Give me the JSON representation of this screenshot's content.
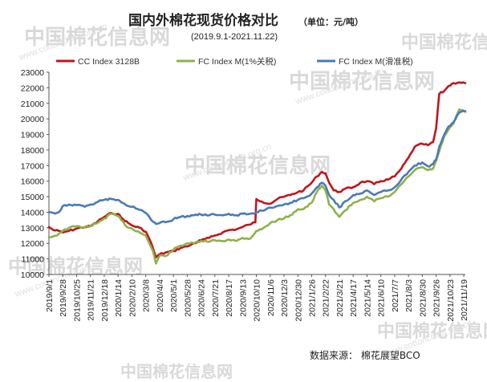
{
  "header": {
    "title": "国内外棉花现货价格对比",
    "unit": "（单位：元/吨）",
    "date_range": "(2019.9.1-2021.11.22)"
  },
  "source": "数据来源：  棉花展望BCO",
  "watermark": {
    "brand": "中国棉花信息网",
    "url": "www.cottonchina.org.cn"
  },
  "colors": {
    "cc_index": "#c0151c",
    "fc_index_1pct": "#8db24a",
    "fc_index_sliding": "#4a7ab8",
    "axis": "#555555",
    "watermark": "#d9d9d9"
  },
  "chart_data": {
    "type": "line",
    "title": "国内外棉花现货价格对比",
    "subtitle": "(2019.9.1-2021.11.22)",
    "xlabel": "",
    "ylabel": "",
    "ylim": [
      10000,
      23000
    ],
    "yticks": [
      10000,
      11000,
      12000,
      13000,
      14000,
      15000,
      16000,
      17000,
      18000,
      19000,
      20000,
      21000,
      22000,
      23000
    ],
    "xlim": [
      "2019-09-01",
      "2021-11-22"
    ],
    "x_tick_labels": [
      "2019/9/1",
      "2019/9/28",
      "2019/10/25",
      "2019/11/21",
      "2019/12/18",
      "2020/1/14",
      "2020/2/10",
      "2020/3/8",
      "2020/4/4",
      "2020/5/1",
      "2020/5/28",
      "2020/6/24",
      "2020/7/21",
      "2020/8/17",
      "2020/9/13",
      "2020/10/10",
      "2020/11/6",
      "2020/12/3",
      "2020/12/30",
      "2021/1/26",
      "2021/2/22",
      "2021/3/21",
      "2021/4/17",
      "2021/5/14",
      "2021/6/10",
      "2021/7/7",
      "2021/8/3",
      "2021/8/30",
      "2021/9/26",
      "2021/10/23",
      "2021/11/19"
    ],
    "grid": false,
    "legend_position": "top",
    "series": [
      {
        "name": "CC Index 3128B",
        "color": "#c0151c",
        "points": [
          [
            "2019-09-01",
            13050
          ],
          [
            "2019-09-10",
            12850
          ],
          [
            "2019-09-20",
            12800
          ],
          [
            "2019-09-28",
            12700
          ],
          [
            "2019-10-10",
            12800
          ],
          [
            "2019-10-25",
            12950
          ],
          [
            "2019-11-10",
            13050
          ],
          [
            "2019-11-21",
            13100
          ],
          [
            "2019-12-05",
            13400
          ],
          [
            "2019-12-18",
            13700
          ],
          [
            "2020-01-01",
            13950
          ],
          [
            "2020-01-14",
            13900
          ],
          [
            "2020-01-20",
            13650
          ],
          [
            "2020-02-03",
            13300
          ],
          [
            "2020-02-10",
            13150
          ],
          [
            "2020-02-25",
            13000
          ],
          [
            "2020-03-01",
            12900
          ],
          [
            "2020-03-08",
            12750
          ],
          [
            "2020-03-15",
            12300
          ],
          [
            "2020-03-22",
            11700
          ],
          [
            "2020-03-28",
            11100
          ],
          [
            "2020-04-04",
            11300
          ],
          [
            "2020-04-15",
            11400
          ],
          [
            "2020-05-01",
            11500
          ],
          [
            "2020-05-15",
            11700
          ],
          [
            "2020-05-28",
            11800
          ],
          [
            "2020-06-10",
            12000
          ],
          [
            "2020-06-24",
            12200
          ],
          [
            "2020-07-10",
            12350
          ],
          [
            "2020-07-21",
            12500
          ],
          [
            "2020-08-05",
            12700
          ],
          [
            "2020-08-17",
            12850
          ],
          [
            "2020-09-01",
            12900
          ],
          [
            "2020-09-13",
            13050
          ],
          [
            "2020-09-25",
            13200
          ],
          [
            "2020-10-08",
            13350
          ],
          [
            "2020-10-10",
            14850
          ],
          [
            "2020-10-20",
            14700
          ],
          [
            "2020-11-06",
            14550
          ],
          [
            "2020-11-20",
            14850
          ],
          [
            "2020-12-03",
            15000
          ],
          [
            "2020-12-15",
            15100
          ],
          [
            "2020-12-30",
            15300
          ],
          [
            "2021-01-10",
            15400
          ],
          [
            "2021-01-26",
            15900
          ],
          [
            "2021-02-05",
            16300
          ],
          [
            "2021-02-15",
            16600
          ],
          [
            "2021-02-22",
            16500
          ],
          [
            "2021-03-01",
            15900
          ],
          [
            "2021-03-10",
            15400
          ],
          [
            "2021-03-21",
            15300
          ],
          [
            "2021-04-01",
            15500
          ],
          [
            "2021-04-17",
            15600
          ],
          [
            "2021-05-01",
            15900
          ],
          [
            "2021-05-14",
            16000
          ],
          [
            "2021-05-28",
            15800
          ],
          [
            "2021-06-10",
            16000
          ],
          [
            "2021-06-24",
            16100
          ],
          [
            "2021-07-07",
            16300
          ],
          [
            "2021-07-20",
            16800
          ],
          [
            "2021-08-03",
            17500
          ],
          [
            "2021-08-15",
            18200
          ],
          [
            "2021-08-30",
            18400
          ],
          [
            "2021-09-10",
            18300
          ],
          [
            "2021-09-20",
            18500
          ],
          [
            "2021-09-26",
            19400
          ],
          [
            "2021-10-02",
            21600
          ],
          [
            "2021-10-12",
            21800
          ],
          [
            "2021-10-20",
            22100
          ],
          [
            "2021-10-30",
            22300
          ],
          [
            "2021-11-10",
            22350
          ],
          [
            "2021-11-22",
            22300
          ]
        ]
      },
      {
        "name": "FC Index M(1%关税)",
        "color": "#8db24a",
        "points": [
          [
            "2019-09-01",
            12400
          ],
          [
            "2019-09-10",
            12450
          ],
          [
            "2019-09-20",
            12600
          ],
          [
            "2019-09-28",
            12800
          ],
          [
            "2019-10-10",
            13000
          ],
          [
            "2019-10-25",
            13100
          ],
          [
            "2019-11-10",
            13050
          ],
          [
            "2019-11-21",
            13100
          ],
          [
            "2019-12-05",
            13300
          ],
          [
            "2019-12-18",
            13600
          ],
          [
            "2020-01-01",
            13900
          ],
          [
            "2020-01-14",
            13750
          ],
          [
            "2020-01-20",
            13500
          ],
          [
            "2020-02-03",
            13000
          ],
          [
            "2020-02-10",
            12950
          ],
          [
            "2020-02-25",
            12700
          ],
          [
            "2020-03-08",
            12500
          ],
          [
            "2020-03-15",
            12000
          ],
          [
            "2020-03-22",
            11500
          ],
          [
            "2020-03-28",
            10700
          ],
          [
            "2020-04-04",
            11200
          ],
          [
            "2020-04-20",
            11250
          ],
          [
            "2020-05-01",
            11600
          ],
          [
            "2020-05-15",
            11850
          ],
          [
            "2020-05-28",
            12000
          ],
          [
            "2020-06-10",
            12000
          ],
          [
            "2020-06-24",
            12150
          ],
          [
            "2020-07-10",
            12100
          ],
          [
            "2020-07-21",
            12200
          ],
          [
            "2020-08-05",
            12150
          ],
          [
            "2020-08-17",
            12250
          ],
          [
            "2020-09-01",
            12150
          ],
          [
            "2020-09-13",
            12350
          ],
          [
            "2020-09-28",
            12300
          ],
          [
            "2020-10-10",
            12800
          ],
          [
            "2020-10-20",
            12900
          ],
          [
            "2020-11-06",
            13300
          ],
          [
            "2020-11-20",
            13500
          ],
          [
            "2020-12-03",
            13600
          ],
          [
            "2020-12-15",
            13800
          ],
          [
            "2020-12-30",
            14200
          ],
          [
            "2021-01-10",
            14200
          ],
          [
            "2021-01-26",
            14600
          ],
          [
            "2021-02-05",
            15300
          ],
          [
            "2021-02-15",
            15700
          ],
          [
            "2021-02-22",
            15400
          ],
          [
            "2021-03-01",
            14500
          ],
          [
            "2021-03-10",
            14200
          ],
          [
            "2021-03-21",
            13700
          ],
          [
            "2021-04-01",
            14100
          ],
          [
            "2021-04-17",
            14600
          ],
          [
            "2021-05-01",
            14800
          ],
          [
            "2021-05-14",
            15000
          ],
          [
            "2021-05-28",
            14700
          ],
          [
            "2021-06-10",
            14900
          ],
          [
            "2021-06-24",
            15000
          ],
          [
            "2021-07-07",
            15300
          ],
          [
            "2021-07-20",
            15800
          ],
          [
            "2021-08-03",
            16300
          ],
          [
            "2021-08-15",
            16700
          ],
          [
            "2021-08-30",
            16900
          ],
          [
            "2021-09-10",
            16700
          ],
          [
            "2021-09-20",
            16800
          ],
          [
            "2021-09-26",
            17300
          ],
          [
            "2021-10-02",
            17900
          ],
          [
            "2021-10-12",
            18900
          ],
          [
            "2021-10-20",
            19300
          ],
          [
            "2021-10-30",
            19700
          ],
          [
            "2021-11-10",
            20600
          ],
          [
            "2021-11-22",
            20450
          ]
        ]
      },
      {
        "name": "FC Index M(滑准税)",
        "color": "#4a7ab8",
        "points": [
          [
            "2019-09-01",
            14000
          ],
          [
            "2019-09-10",
            13950
          ],
          [
            "2019-09-20",
            14000
          ],
          [
            "2019-09-28",
            14400
          ],
          [
            "2019-10-10",
            14500
          ],
          [
            "2019-10-25",
            14450
          ],
          [
            "2019-11-10",
            14350
          ],
          [
            "2019-11-21",
            14500
          ],
          [
            "2019-12-05",
            14650
          ],
          [
            "2019-12-18",
            14800
          ],
          [
            "2020-01-01",
            14850
          ],
          [
            "2020-01-14",
            14800
          ],
          [
            "2020-01-20",
            14650
          ],
          [
            "2020-02-03",
            14400
          ],
          [
            "2020-02-10",
            14350
          ],
          [
            "2020-02-25",
            14150
          ],
          [
            "2020-03-08",
            13950
          ],
          [
            "2020-03-15",
            13700
          ],
          [
            "2020-03-22",
            13400
          ],
          [
            "2020-03-28",
            13250
          ],
          [
            "2020-04-04",
            13300
          ],
          [
            "2020-04-20",
            13400
          ],
          [
            "2020-05-01",
            13550
          ],
          [
            "2020-05-15",
            13700
          ],
          [
            "2020-05-28",
            13750
          ],
          [
            "2020-06-10",
            13800
          ],
          [
            "2020-06-24",
            13850
          ],
          [
            "2020-07-10",
            13800
          ],
          [
            "2020-07-21",
            13850
          ],
          [
            "2020-08-05",
            13800
          ],
          [
            "2020-08-17",
            13900
          ],
          [
            "2020-09-01",
            13800
          ],
          [
            "2020-09-13",
            13900
          ],
          [
            "2020-09-28",
            13900
          ],
          [
            "2020-10-10",
            14000
          ],
          [
            "2020-10-20",
            14100
          ],
          [
            "2020-11-06",
            14300
          ],
          [
            "2020-11-20",
            14400
          ],
          [
            "2020-12-03",
            14500
          ],
          [
            "2020-12-15",
            14600
          ],
          [
            "2020-12-30",
            14800
          ],
          [
            "2021-01-10",
            14900
          ],
          [
            "2021-01-26",
            15200
          ],
          [
            "2021-02-05",
            15600
          ],
          [
            "2021-02-15",
            15900
          ],
          [
            "2021-02-22",
            15700
          ],
          [
            "2021-03-01",
            15100
          ],
          [
            "2021-03-10",
            14800
          ],
          [
            "2021-03-21",
            14300
          ],
          [
            "2021-04-01",
            14700
          ],
          [
            "2021-04-17",
            15100
          ],
          [
            "2021-05-01",
            15200
          ],
          [
            "2021-05-14",
            15400
          ],
          [
            "2021-05-28",
            15100
          ],
          [
            "2021-06-10",
            15300
          ],
          [
            "2021-06-24",
            15400
          ],
          [
            "2021-07-07",
            15600
          ],
          [
            "2021-07-20",
            16100
          ],
          [
            "2021-08-03",
            16600
          ],
          [
            "2021-08-15",
            17000
          ],
          [
            "2021-08-30",
            17200
          ],
          [
            "2021-09-10",
            16950
          ],
          [
            "2021-09-20",
            17100
          ],
          [
            "2021-09-26",
            17400
          ],
          [
            "2021-10-02",
            18200
          ],
          [
            "2021-10-12",
            19000
          ],
          [
            "2021-10-20",
            19500
          ],
          [
            "2021-10-30",
            19800
          ],
          [
            "2021-11-10",
            20400
          ],
          [
            "2021-11-22",
            20500
          ]
        ]
      }
    ]
  }
}
